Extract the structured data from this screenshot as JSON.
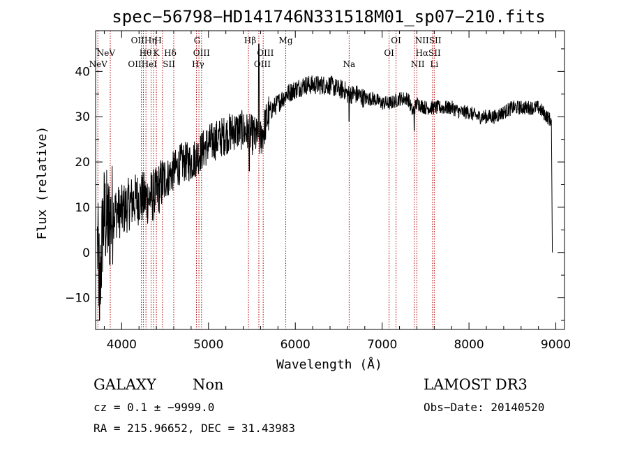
{
  "chart_data": {
    "type": "line",
    "title": "spec−56798−HD141746N331518M01_sp07−210.fits",
    "xlabel": "Wavelength (Å)",
    "ylabel": "Flux (relative)",
    "xlim": [
      3700,
      9100
    ],
    "ylim": [
      -17,
      49
    ],
    "xticks": [
      4000,
      5000,
      6000,
      7000,
      8000,
      9000
    ],
    "yticks": [
      -10,
      0,
      10,
      20,
      30,
      40
    ],
    "xtick_labels": [
      "4000",
      "5000",
      "6000",
      "7000",
      "8000",
      "9000"
    ],
    "ytick_labels": [
      "−10",
      "0",
      "10",
      "20",
      "30",
      "40"
    ],
    "line_color": "#000000",
    "marker_color": "#b00000",
    "spectrum": {
      "x": [
        3720,
        3750,
        3780,
        3800,
        3850,
        3900,
        4000,
        4100,
        4200,
        4300,
        4400,
        4450,
        4500,
        4600,
        4700,
        4800,
        4900,
        5000,
        5100,
        5200,
        5300,
        5400,
        5500,
        5600,
        5650,
        5700,
        5800,
        5900,
        6000,
        6100,
        6200,
        6300,
        6400,
        6500,
        6563,
        6600,
        6700,
        6800,
        6900,
        7000,
        7100,
        7200,
        7300,
        7350,
        7400,
        7500,
        7600,
        7700,
        7800,
        7900,
        8000,
        8100,
        8200,
        8300,
        8400,
        8500,
        8600,
        8700,
        8800,
        8900,
        8950
      ],
      "y": [
        2,
        -8,
        5,
        8,
        6,
        9,
        9,
        11,
        12,
        12,
        13,
        15,
        16,
        18,
        20,
        20,
        22,
        24,
        25,
        26,
        27,
        27,
        26,
        25,
        28,
        31,
        33,
        35,
        36,
        37,
        37,
        37,
        37,
        36,
        36,
        35,
        35,
        34,
        34,
        33,
        33,
        34,
        34,
        31,
        33,
        32,
        32,
        32,
        32,
        31,
        31,
        30,
        30,
        30,
        31,
        32,
        32,
        32,
        32,
        30,
        29
      ]
    },
    "lines": [
      {
        "wl": 3726,
        "labels": [
          "NeV"
        ]
      },
      {
        "wl": 3869,
        "labels": [
          "NeV"
        ]
      },
      {
        "wl": 4227,
        "labels": [
          "OII"
        ]
      },
      {
        "wl": 4250,
        "labels": [
          "OIIHη"
        ]
      },
      {
        "wl": 4280,
        "labels": [
          "Hθ"
        ]
      },
      {
        "wl": 4340,
        "labels": [
          "H"
        ]
      },
      {
        "wl": 4370,
        "labels": [
          "HeI"
        ]
      },
      {
        "wl": 4400,
        "labels": [
          "K"
        ]
      },
      {
        "wl": 4470,
        "labels": [
          "Hδ"
        ]
      },
      {
        "wl": 4600,
        "labels": [
          "SII"
        ]
      },
      {
        "wl": 4861,
        "labels": [
          "G"
        ]
      },
      {
        "wl": 4890,
        "labels": [
          "OIII"
        ]
      },
      {
        "wl": 4920,
        "labels": [
          "Hγ"
        ]
      },
      {
        "wl": 5460,
        "labels": [
          "Hβ"
        ]
      },
      {
        "wl": 5580,
        "labels": [
          "OIII"
        ]
      },
      {
        "wl": 5630,
        "labels": [
          "OIII"
        ]
      },
      {
        "wl": 5890,
        "labels": [
          "Mg"
        ]
      },
      {
        "wl": 6620,
        "labels": [
          "Na"
        ]
      },
      {
        "wl": 7080,
        "labels": [
          "OI"
        ]
      },
      {
        "wl": 7160,
        "labels": [
          "OI"
        ]
      },
      {
        "wl": 7370,
        "labels": [
          "NII"
        ]
      },
      {
        "wl": 7400,
        "labels": [
          "Hα"
        ]
      },
      {
        "wl": 7580,
        "labels": [
          "SII"
        ]
      },
      {
        "wl": 7600,
        "labels": [
          "Li"
        ]
      }
    ],
    "line_labels": [
      {
        "text": "NeV",
        "x": 3820,
        "row": 1
      },
      {
        "text": "NeV",
        "x": 3730,
        "row": 2
      },
      {
        "text": "OIIHη",
        "x": 4255,
        "row": 0
      },
      {
        "text": "H",
        "x": 4420,
        "row": 0
      },
      {
        "text": "Hθ",
        "x": 4275,
        "row": 1
      },
      {
        "text": "K",
        "x": 4400,
        "row": 1
      },
      {
        "text": "Hδ",
        "x": 4560,
        "row": 1
      },
      {
        "text": "OIIHeI",
        "x": 4240,
        "row": 2
      },
      {
        "text": "SII",
        "x": 4545,
        "row": 2
      },
      {
        "text": "G",
        "x": 4870,
        "row": 0
      },
      {
        "text": "OIII",
        "x": 4920,
        "row": 1
      },
      {
        "text": "Hγ",
        "x": 4880,
        "row": 2
      },
      {
        "text": "Hβ",
        "x": 5480,
        "row": 0
      },
      {
        "text": "Mg",
        "x": 5890,
        "row": 0
      },
      {
        "text": "OIII",
        "x": 5655,
        "row": 1
      },
      {
        "text": "OIII",
        "x": 5620,
        "row": 2
      },
      {
        "text": "Na",
        "x": 6620,
        "row": 2
      },
      {
        "text": "OI",
        "x": 7160,
        "row": 0
      },
      {
        "text": "OI",
        "x": 7080,
        "row": 1
      },
      {
        "text": "NIISII",
        "x": 7530,
        "row": 0
      },
      {
        "text": "HαSII",
        "x": 7530,
        "row": 1
      },
      {
        "text": "NII",
        "x": 7410,
        "row": 2
      },
      {
        "text": "Li",
        "x": 7600,
        "row": 2
      }
    ]
  },
  "footer": {
    "class": "GALAXY",
    "subclass": "Non",
    "survey": "LAMOST DR3",
    "cz": "cz = 0.1 ± −9999.0",
    "obs_date": "Obs−Date: 20140520",
    "radec": "RA = 215.96652, DEC =  31.43983"
  }
}
